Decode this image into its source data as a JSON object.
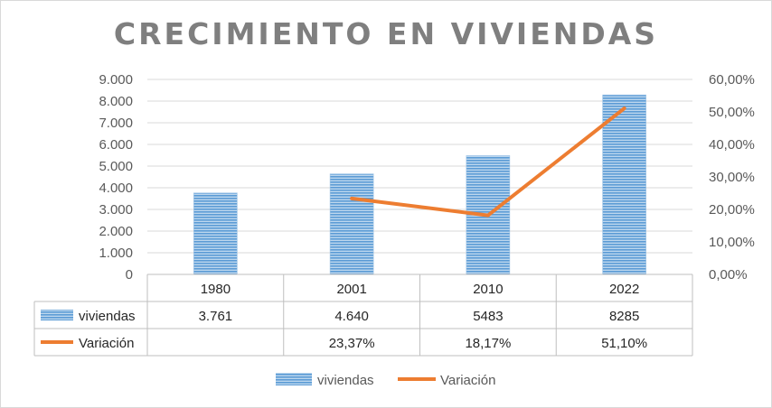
{
  "chart_data": {
    "type": "bar",
    "title": "CRECIMIENTO EN VIVIENDAS",
    "categories": [
      "1980",
      "2001",
      "2010",
      "2022"
    ],
    "y_left": {
      "ylim": [
        0,
        9000
      ],
      "ticks": [
        {
          "value": 0,
          "label": "0"
        },
        {
          "value": 1000,
          "label": "1.000"
        },
        {
          "value": 2000,
          "label": "2.000"
        },
        {
          "value": 3000,
          "label": "3.000"
        },
        {
          "value": 4000,
          "label": "4.000"
        },
        {
          "value": 5000,
          "label": "5.000"
        },
        {
          "value": 6000,
          "label": "6.000"
        },
        {
          "value": 7000,
          "label": "7.000"
        },
        {
          "value": 8000,
          "label": "8.000"
        },
        {
          "value": 9000,
          "label": "9.000"
        }
      ]
    },
    "y_right": {
      "ylim": [
        0,
        0.6
      ],
      "ticks": [
        {
          "value": 0,
          "label": "0,00%"
        },
        {
          "value": 0.1,
          "label": "10,00%"
        },
        {
          "value": 0.2,
          "label": "20,00%"
        },
        {
          "value": 0.3,
          "label": "30,00%"
        },
        {
          "value": 0.4,
          "label": "40,00%"
        },
        {
          "value": 0.5,
          "label": "50,00%"
        },
        {
          "value": 0.6,
          "label": "60,00%"
        }
      ]
    },
    "series": [
      {
        "name": "viviendas",
        "kind": "bar",
        "axis": "left",
        "color": "#5b9bd5",
        "values": [
          3761,
          4640,
          5483,
          8285
        ],
        "labels": [
          "3.761",
          "4.640",
          "5483",
          "8285"
        ]
      },
      {
        "name": "Variación",
        "kind": "line",
        "axis": "right",
        "color": "#ed7d31",
        "values": [
          null,
          0.2337,
          0.1817,
          0.511
        ],
        "labels": [
          "",
          "23,37%",
          "18,17%",
          "51,10%"
        ]
      }
    ],
    "grid": true,
    "legend": "bottom",
    "data_table": true
  }
}
